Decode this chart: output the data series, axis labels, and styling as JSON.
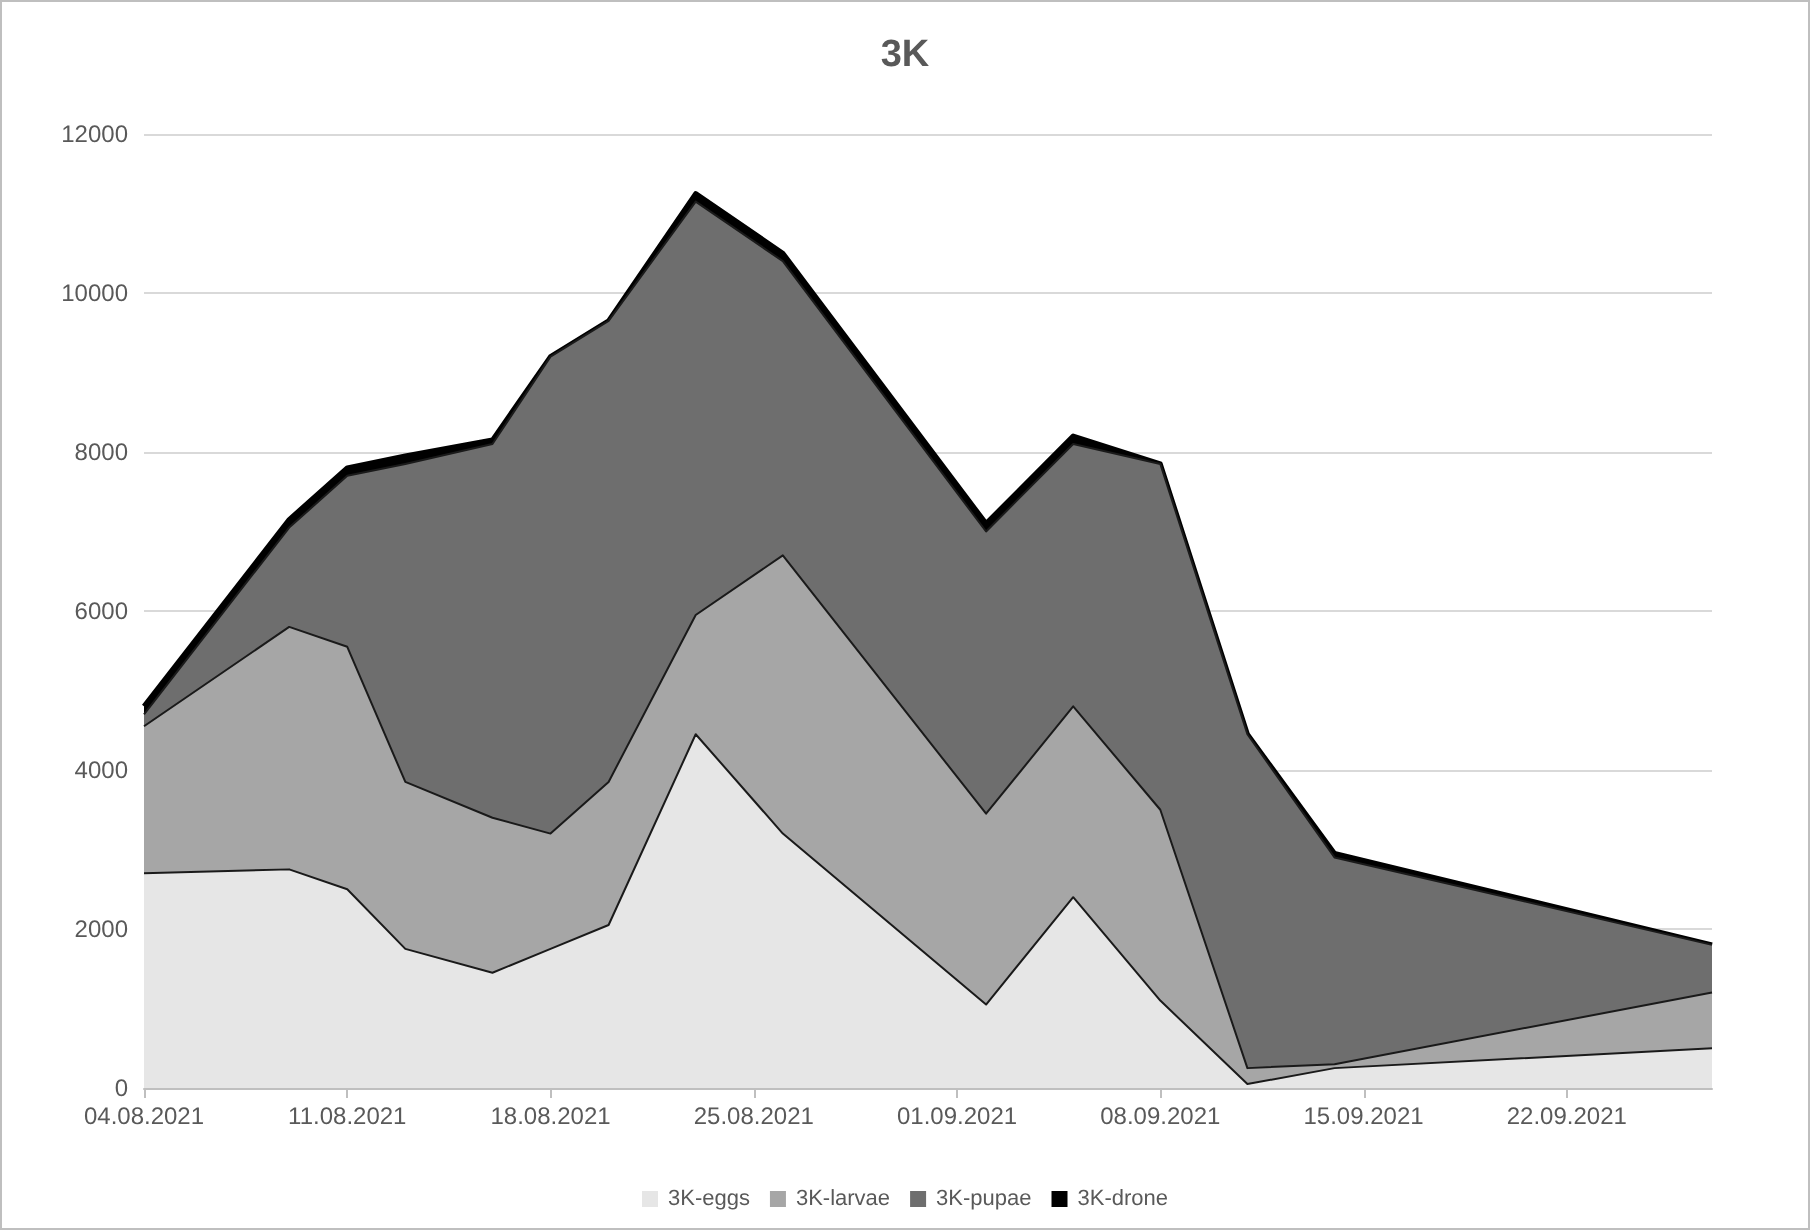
{
  "chart_data": {
    "type": "area",
    "title": "3K",
    "stacked": true,
    "x": [
      "2021-08-04",
      "2021-08-09",
      "2021-08-11",
      "2021-08-13",
      "2021-08-16",
      "2021-08-18",
      "2021-08-20",
      "2021-08-23",
      "2021-08-26",
      "2021-09-02",
      "2021-09-05",
      "2021-09-08",
      "2021-09-11",
      "2021-09-14",
      "2021-09-27"
    ],
    "series": [
      {
        "name": "3K-eggs",
        "color": "#e6e6e6",
        "values": [
          2700,
          2750,
          2500,
          1750,
          1450,
          1750,
          2050,
          4450,
          3200,
          1050,
          2400,
          1100,
          50,
          250,
          500
        ]
      },
      {
        "name": "3K-larvae",
        "color": "#a6a6a6",
        "values": [
          1850,
          3050,
          3050,
          2100,
          1950,
          1450,
          1800,
          1500,
          3500,
          2400,
          2400,
          2400,
          200,
          50,
          700
        ]
      },
      {
        "name": "3K-pupae",
        "color": "#6e6e6e",
        "values": [
          150,
          1250,
          2150,
          4000,
          4700,
          6000,
          5800,
          5200,
          3700,
          3550,
          3300,
          4350,
          4200,
          2600,
          600
        ]
      },
      {
        "name": "3K-drone",
        "color": "#000000",
        "values": [
          100,
          100,
          100,
          100,
          50,
          0,
          0,
          100,
          100,
          100,
          100,
          0,
          0,
          50,
          0
        ]
      }
    ],
    "xlim": [
      "2021-08-04",
      "2021-09-27"
    ],
    "xticks": [
      {
        "value": "2021-08-04",
        "label": "04.08.2021"
      },
      {
        "value": "2021-08-11",
        "label": "11.08.2021"
      },
      {
        "value": "2021-08-18",
        "label": "18.08.2021"
      },
      {
        "value": "2021-08-25",
        "label": "25.08.2021"
      },
      {
        "value": "2021-09-01",
        "label": "01.09.2021"
      },
      {
        "value": "2021-09-08",
        "label": "08.09.2021"
      },
      {
        "value": "2021-09-15",
        "label": "15.09.2021"
      },
      {
        "value": "2021-09-22",
        "label": "22.09.2021"
      }
    ],
    "ylim": [
      0,
      12000
    ],
    "yticks": [
      0,
      2000,
      4000,
      6000,
      8000,
      10000,
      12000
    ],
    "grid": "y",
    "legend": "bottom",
    "marker": "none"
  }
}
